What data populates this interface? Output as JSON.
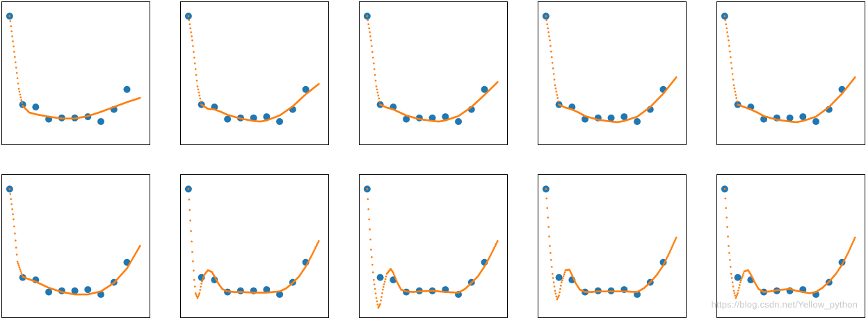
{
  "watermark": "https://blog.csdn.net/Yellow_python",
  "colors": {
    "points": "#1f77b4",
    "fit": "#ff7f0e",
    "frame": "#000000"
  },
  "chart_data": {
    "type": "scatter",
    "title": "",
    "grid": false,
    "axes_ticks": false,
    "layout": "2 rows x 5 columns of polynomial-fit panels",
    "shared_points": {
      "x": [
        0,
        1,
        2,
        3,
        4,
        5,
        6,
        7,
        8,
        9
      ],
      "y": [
        9.0,
        1.7,
        1.5,
        0.5,
        0.6,
        0.6,
        0.7,
        0.3,
        1.3,
        2.95
      ]
    },
    "fit_x_range": [
      0,
      10
    ],
    "panels": [
      {
        "row": 0,
        "col": 0,
        "fit": {
          "x": [
            0,
            0.3,
            0.7,
            1,
            1.5,
            2,
            3,
            4,
            5,
            6,
            7,
            8,
            9,
            10
          ],
          "y": [
            9,
            6.5,
            3,
            1.6,
            1.05,
            0.9,
            0.7,
            0.55,
            0.55,
            0.75,
            1.1,
            1.5,
            1.9,
            2.25
          ]
        }
      },
      {
        "row": 0,
        "col": 1,
        "fit": {
          "x": [
            0,
            0.3,
            0.7,
            1,
            1.5,
            2,
            2.5,
            3,
            4,
            5,
            5.5,
            6,
            7,
            8,
            9,
            10
          ],
          "y": [
            9,
            7,
            3.2,
            1.7,
            1.35,
            1.3,
            1.1,
            0.85,
            0.55,
            0.35,
            0.3,
            0.4,
            0.8,
            1.55,
            2.55,
            3.4
          ]
        }
      },
      {
        "row": 0,
        "col": 2,
        "fit": {
          "x": [
            0,
            0.3,
            0.7,
            1,
            1.5,
            2,
            2.5,
            3,
            4,
            5,
            5.5,
            6,
            7,
            8,
            9,
            10
          ],
          "y": [
            9,
            7,
            3.2,
            1.7,
            1.45,
            1.3,
            1.05,
            0.8,
            0.5,
            0.35,
            0.3,
            0.4,
            0.75,
            1.5,
            2.5,
            3.55
          ]
        }
      },
      {
        "row": 0,
        "col": 3,
        "fit": {
          "x": [
            0,
            0.3,
            0.7,
            1,
            1.5,
            2,
            2.5,
            3,
            4,
            5,
            5.5,
            6,
            7,
            8,
            9,
            10
          ],
          "y": [
            9,
            7,
            3.3,
            1.7,
            1.45,
            1.3,
            1.05,
            0.75,
            0.45,
            0.3,
            0.25,
            0.35,
            0.7,
            1.5,
            2.6,
            3.95
          ]
        }
      },
      {
        "row": 0,
        "col": 4,
        "fit": {
          "x": [
            0,
            0.3,
            0.7,
            1,
            1.5,
            2,
            2.5,
            3,
            4,
            5,
            5.5,
            6,
            7,
            8,
            9,
            10
          ],
          "y": [
            9,
            7,
            3.3,
            1.7,
            1.5,
            1.3,
            1.05,
            0.75,
            0.45,
            0.3,
            0.25,
            0.35,
            0.7,
            1.5,
            2.6,
            3.95
          ]
        }
      },
      {
        "row": 1,
        "col": 0,
        "fit": {
          "x": [
            0,
            0.3,
            0.6,
            1,
            1.5,
            2,
            3,
            4,
            5,
            6,
            7,
            8,
            9,
            10
          ],
          "y": [
            9,
            6.5,
            3,
            1.75,
            1.55,
            1.35,
            0.85,
            0.5,
            0.3,
            0.3,
            0.55,
            1.25,
            2.45,
            4.3
          ]
        }
      },
      {
        "row": 1,
        "col": 1,
        "fit": {
          "x": [
            0,
            0.3,
            0.45,
            0.55,
            0.7,
            0.85,
            1,
            1.2,
            1.5,
            1.8,
            2,
            2.3,
            2.6,
            3,
            3.5,
            4,
            5,
            6,
            7,
            7.5,
            8,
            8.5,
            9,
            9.5,
            10
          ],
          "y": [
            9,
            3.8,
            1.5,
            0.4,
            0,
            0.4,
            1.2,
            1.9,
            2.3,
            2.15,
            1.8,
            1.2,
            0.75,
            0.55,
            0.5,
            0.5,
            0.45,
            0.45,
            0.55,
            0.8,
            1.25,
            1.8,
            2.6,
            3.6,
            4.7
          ]
        }
      },
      {
        "row": 1,
        "col": 2,
        "fit": {
          "x": [
            0,
            0.3,
            0.5,
            0.7,
            0.85,
            1,
            1.2,
            1.5,
            1.8,
            2,
            2.3,
            2.6,
            3,
            3.5,
            4,
            5,
            6,
            7,
            7.5,
            8,
            8.5,
            9,
            9.5,
            10
          ],
          "y": [
            9,
            4,
            1.5,
            0,
            -0.8,
            -0.5,
            0.7,
            2,
            2.4,
            2.1,
            1.3,
            0.7,
            0.55,
            0.5,
            0.55,
            0.6,
            0.5,
            0.45,
            0.75,
            1.25,
            1.8,
            2.6,
            3.6,
            4.7
          ]
        }
      },
      {
        "row": 1,
        "col": 3,
        "fit": {
          "x": [
            0,
            0.3,
            0.5,
            0.7,
            0.85,
            1,
            1.2,
            1.5,
            1.8,
            2,
            2.3,
            2.6,
            3,
            3.5,
            4,
            5,
            6,
            7,
            7.5,
            8,
            8.5,
            9,
            9.5,
            10
          ],
          "y": [
            9,
            4.3,
            2,
            0.6,
            -0.1,
            0.2,
            1.3,
            2.3,
            2.35,
            1.9,
            1.2,
            0.7,
            0.5,
            0.5,
            0.55,
            0.55,
            0.55,
            0.5,
            0.8,
            1.3,
            1.9,
            2.7,
            3.8,
            5.0
          ]
        }
      },
      {
        "row": 1,
        "col": 4,
        "fit": {
          "x": [
            0,
            0.3,
            0.5,
            0.7,
            0.85,
            1,
            1.2,
            1.5,
            1.8,
            2,
            2.3,
            2.6,
            3,
            3.5,
            4,
            5,
            5.5,
            6,
            6.5,
            7,
            7.5,
            8,
            8.5,
            9,
            9.5,
            10
          ],
          "y": [
            9,
            4.3,
            2,
            0.6,
            0,
            0.4,
            1.3,
            2.2,
            2.3,
            1.95,
            1.3,
            0.75,
            0.5,
            0.55,
            0.65,
            0.75,
            0.6,
            0.5,
            0.4,
            0.5,
            0.85,
            1.35,
            1.95,
            2.75,
            3.8,
            5.0
          ]
        }
      }
    ]
  }
}
